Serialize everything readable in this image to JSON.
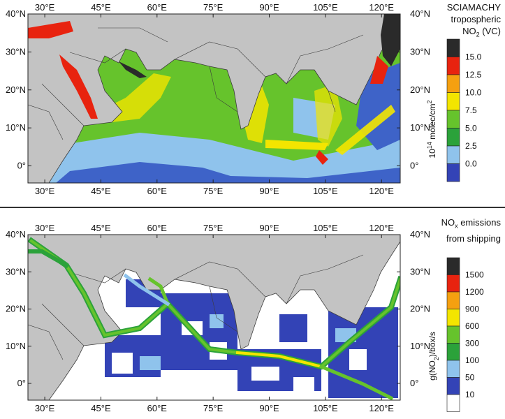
{
  "top": {
    "title_lines": [
      "SCIAMACHY",
      "tropospheric",
      "NO2 (VC)"
    ],
    "colorbar_unit": "10^14 molec/cm^2",
    "colorbar_labels": [
      "15.0",
      "12.5",
      "10.0",
      "7.5",
      "5.0",
      "2.5",
      "0.0"
    ],
    "colorbar_colors": [
      "#2a2a2a",
      "#e8230f",
      "#f5a010",
      "#f3e500",
      "#66c32c",
      "#2ba23a",
      "#8fc3ec",
      "#3343b6"
    ]
  },
  "bottom": {
    "title_lines": [
      "NOx emissions",
      "from shipping"
    ],
    "colorbar_unit": "g(NO2)/box/s",
    "colorbar_labels": [
      "1500",
      "1200",
      "900",
      "600",
      "300",
      "100",
      "50",
      "10"
    ],
    "colorbar_colors": [
      "#2a2a2a",
      "#e8230f",
      "#f5a010",
      "#f3e500",
      "#66c32c",
      "#2ba23a",
      "#8fc3ec",
      "#3343b6",
      "#ffffff"
    ]
  },
  "lon_ticks": [
    "30°E",
    "45°E",
    "60°E",
    "75°E",
    "90°E",
    "105°E",
    "120°E"
  ],
  "lat_ticks": [
    "40°N",
    "30°N",
    "20°N",
    "10°N",
    "0°"
  ],
  "colors": {
    "land": "#c3c3c3",
    "border": "#3c3c3c",
    "ocean_low": "#3343b6",
    "ocean_mid": "#8fc3ec",
    "ship_bg": "#ffffff"
  }
}
